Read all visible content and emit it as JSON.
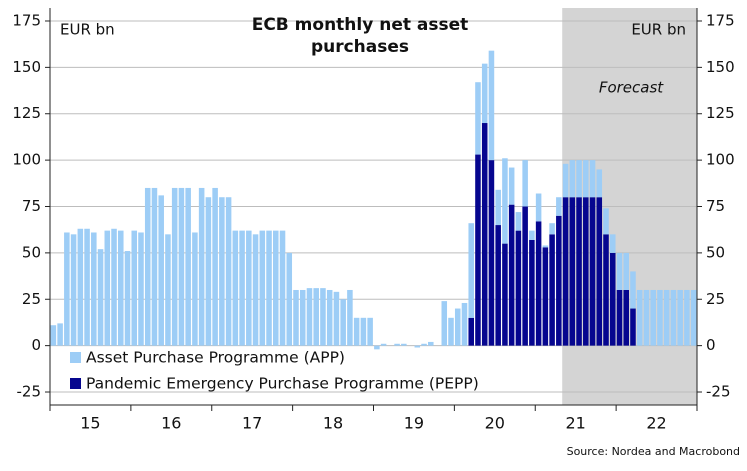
{
  "chart_data": {
    "type": "stacked_bar",
    "title": "ECB monthly net asset purchases",
    "y_axis_label": "EUR bn",
    "y2_axis_label": "EUR bn",
    "annotation": "Forecast",
    "source": "Source: Nordea and Macrobond",
    "forecast_start_index": 76,
    "shade_color": "#d4d4d4",
    "categories": [
      null,
      null,
      null,
      null,
      null,
      null,
      "15",
      null,
      null,
      null,
      null,
      null,
      null,
      null,
      null,
      null,
      null,
      null,
      "16",
      null,
      null,
      null,
      null,
      null,
      null,
      null,
      null,
      null,
      null,
      null,
      "17",
      null,
      null,
      null,
      null,
      null,
      null,
      null,
      null,
      null,
      null,
      null,
      "18",
      null,
      null,
      null,
      null,
      null,
      null,
      null,
      null,
      null,
      null,
      null,
      "19",
      null,
      null,
      null,
      null,
      null,
      null,
      null,
      null,
      null,
      null,
      null,
      "20",
      null,
      null,
      null,
      null,
      null,
      null,
      null,
      null,
      null,
      null,
      null,
      "21",
      null,
      null,
      null,
      null,
      null,
      null,
      null,
      null,
      null,
      null,
      null,
      "22",
      null,
      null,
      null,
      null,
      null
    ],
    "series": [
      {
        "name": "Pandemic Emergency Purchase Programme (PEPP)",
        "color": "#06068f",
        "values": [
          null,
          null,
          null,
          null,
          null,
          null,
          null,
          null,
          null,
          null,
          null,
          null,
          null,
          null,
          null,
          null,
          null,
          null,
          null,
          null,
          null,
          null,
          null,
          null,
          null,
          null,
          null,
          null,
          null,
          null,
          null,
          null,
          null,
          null,
          null,
          null,
          null,
          null,
          null,
          null,
          null,
          null,
          null,
          null,
          null,
          null,
          null,
          null,
          null,
          null,
          null,
          null,
          null,
          null,
          null,
          null,
          null,
          null,
          null,
          null,
          null,
          null,
          15,
          103,
          120,
          100,
          65,
          55,
          76,
          62,
          75,
          57,
          67,
          53,
          60,
          70,
          80,
          80,
          80,
          80,
          80,
          80,
          60,
          50,
          30,
          30,
          20,
          null,
          null,
          null,
          null,
          null,
          null,
          null,
          null,
          null
        ]
      },
      {
        "name": "Asset Purchase Programme (APP)",
        "color": "#9dcdf6",
        "values": [
          11,
          12,
          61,
          60,
          63,
          63,
          61,
          52,
          62,
          63,
          62,
          51,
          62,
          61,
          85,
          85,
          81,
          60,
          85,
          85,
          85,
          61,
          85,
          80,
          85,
          80,
          80,
          62,
          62,
          62,
          60,
          62,
          62,
          62,
          62,
          50,
          30,
          30,
          31,
          31,
          31,
          30,
          29,
          25,
          30,
          15,
          15,
          15,
          -2,
          1,
          0,
          1,
          1,
          0,
          -1,
          1,
          2,
          0,
          24,
          15,
          20,
          23,
          51,
          39,
          32,
          59,
          19,
          46,
          20,
          10,
          25,
          5,
          15,
          1,
          6,
          10,
          18,
          20,
          20,
          20,
          20,
          15,
          14,
          10,
          20,
          20,
          20,
          30,
          30,
          30,
          30,
          30,
          30,
          30,
          30,
          30
        ]
      }
    ],
    "legend_order": [
      1,
      0
    ],
    "ylim": [
      -32,
      182
    ],
    "yticks": [
      -25,
      0,
      25,
      50,
      75,
      100,
      125,
      150,
      175
    ],
    "grid": true
  }
}
